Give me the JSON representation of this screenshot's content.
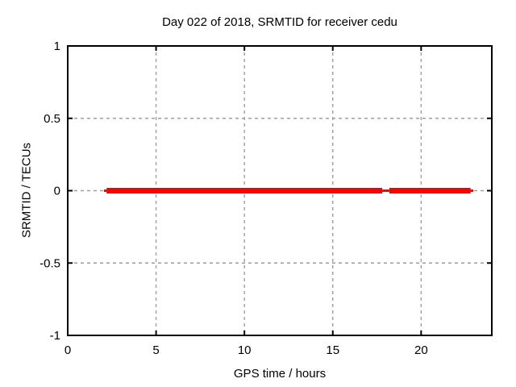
{
  "figure": {
    "background": "#ffffff"
  },
  "chart_data": {
    "type": "line",
    "title": "Day 022 of 2018, SRMTID for receiver cedu",
    "xlabel": "GPS time / hours",
    "ylabel": "SRMTID / TECUs",
    "xlim": [
      0,
      24
    ],
    "ylim": [
      -1,
      1
    ],
    "xticks": [
      0,
      5,
      10,
      15,
      20
    ],
    "xtick_labels": [
      "0",
      "5",
      "10",
      "15",
      "20"
    ],
    "yticks": [
      -1,
      -0.5,
      0,
      0.5,
      1
    ],
    "ytick_labels": [
      "-1",
      "-0.5",
      "0",
      "0.5",
      "1"
    ],
    "grid": true,
    "grid_style": "dashed",
    "legend": "none",
    "series": [
      {
        "name": "SRMTID",
        "color": "#ff0000",
        "y_value": 0,
        "segments": [
          {
            "x_start": 2.05,
            "x_end": 2.2,
            "weight": "thin"
          },
          {
            "x_start": 2.2,
            "x_end": 17.8,
            "weight": "thick"
          },
          {
            "x_start": 17.8,
            "x_end": 18.2,
            "weight": "thin"
          },
          {
            "x_start": 18.2,
            "x_end": 22.8,
            "weight": "thick"
          },
          {
            "x_start": 22.8,
            "x_end": 22.95,
            "weight": "thin"
          }
        ]
      }
    ],
    "colors": {
      "series": "#ff0000",
      "grid": "#9e9e9e",
      "border": "#000000",
      "text": "#000000",
      "background": "#ffffff"
    }
  }
}
